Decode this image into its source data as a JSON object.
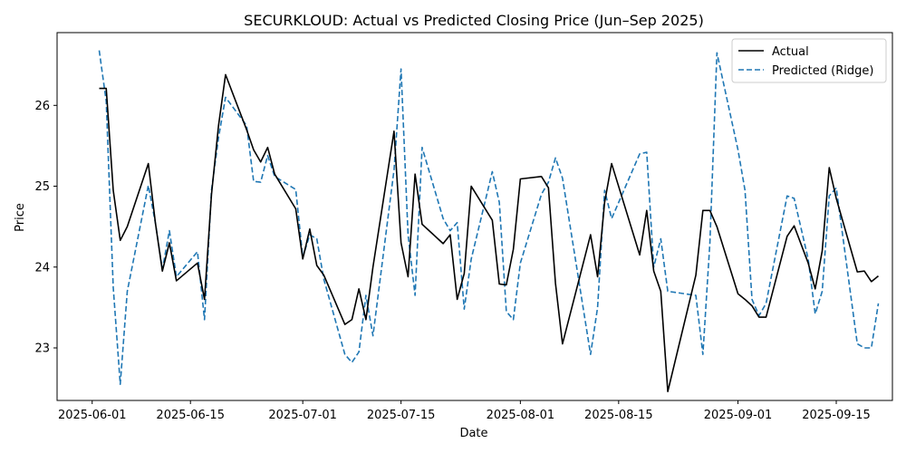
{
  "chart_data": {
    "type": "line",
    "title": "SECURKLOUD: Actual vs Predicted Closing Price (Jun–Sep 2025)",
    "xlabel": "Date",
    "ylabel": "Price",
    "xlim": [
      "2025-05-27",
      "2025-09-23"
    ],
    "ylim": [
      22.35,
      26.9
    ],
    "xticks": [
      "2025-06-01",
      "2025-06-15",
      "2025-07-01",
      "2025-07-15",
      "2025-08-01",
      "2025-08-15",
      "2025-09-01",
      "2025-09-15"
    ],
    "yticks": [
      23,
      24,
      25,
      26
    ],
    "legend_position": "top-right",
    "grid": false,
    "series": [
      {
        "name": "Actual",
        "color": "#000000",
        "style": "solid",
        "points": [
          [
            "2025-06-02",
            26.21
          ],
          [
            "2025-06-03",
            26.21
          ],
          [
            "2025-06-04",
            24.95
          ],
          [
            "2025-06-05",
            24.33
          ],
          [
            "2025-06-06",
            24.5
          ],
          [
            "2025-06-09",
            25.28
          ],
          [
            "2025-06-10",
            24.55
          ],
          [
            "2025-06-11",
            23.95
          ],
          [
            "2025-06-12",
            24.3
          ],
          [
            "2025-06-13",
            23.83
          ],
          [
            "2025-06-16",
            24.05
          ],
          [
            "2025-06-17",
            23.6
          ],
          [
            "2025-06-18",
            24.9
          ],
          [
            "2025-06-19",
            25.75
          ],
          [
            "2025-06-20",
            26.38
          ],
          [
            "2025-06-23",
            25.7
          ],
          [
            "2025-06-24",
            25.45
          ],
          [
            "2025-06-25",
            25.3
          ],
          [
            "2025-06-26",
            25.48
          ],
          [
            "2025-06-27",
            25.15
          ],
          [
            "2025-06-30",
            24.72
          ],
          [
            "2025-07-01",
            24.1
          ],
          [
            "2025-07-02",
            24.47
          ],
          [
            "2025-07-03",
            24.02
          ],
          [
            "2025-07-04",
            23.9
          ],
          [
            "2025-07-07",
            23.29
          ],
          [
            "2025-07-08",
            23.35
          ],
          [
            "2025-07-09",
            23.73
          ],
          [
            "2025-07-10",
            23.35
          ],
          [
            "2025-07-11",
            24.0
          ],
          [
            "2025-07-14",
            25.68
          ],
          [
            "2025-07-15",
            24.3
          ],
          [
            "2025-07-16",
            23.88
          ],
          [
            "2025-07-17",
            25.15
          ],
          [
            "2025-07-18",
            24.53
          ],
          [
            "2025-07-21",
            24.29
          ],
          [
            "2025-07-22",
            24.4
          ],
          [
            "2025-07-23",
            23.6
          ],
          [
            "2025-07-24",
            23.92
          ],
          [
            "2025-07-25",
            25.0
          ],
          [
            "2025-07-28",
            24.58
          ],
          [
            "2025-07-29",
            23.79
          ],
          [
            "2025-07-30",
            23.78
          ],
          [
            "2025-07-31",
            24.22
          ],
          [
            "2025-08-01",
            25.09
          ],
          [
            "2025-08-04",
            25.12
          ],
          [
            "2025-08-05",
            24.98
          ],
          [
            "2025-08-06",
            23.8
          ],
          [
            "2025-08-07",
            23.05
          ],
          [
            "2025-08-11",
            24.4
          ],
          [
            "2025-08-12",
            23.88
          ],
          [
            "2025-08-13",
            24.8
          ],
          [
            "2025-08-14",
            25.28
          ],
          [
            "2025-08-18",
            24.15
          ],
          [
            "2025-08-19",
            24.7
          ],
          [
            "2025-08-20",
            23.95
          ],
          [
            "2025-08-21",
            23.7
          ],
          [
            "2025-08-22",
            22.46
          ],
          [
            "2025-08-26",
            23.9
          ],
          [
            "2025-08-27",
            24.7
          ],
          [
            "2025-08-28",
            24.7
          ],
          [
            "2025-08-29",
            24.5
          ],
          [
            "2025-09-01",
            23.67
          ],
          [
            "2025-09-02",
            23.6
          ],
          [
            "2025-09-03",
            23.52
          ],
          [
            "2025-09-04",
            23.38
          ],
          [
            "2025-09-05",
            23.38
          ],
          [
            "2025-09-08",
            24.38
          ],
          [
            "2025-09-09",
            24.51
          ],
          [
            "2025-09-11",
            24.05
          ],
          [
            "2025-09-12",
            23.73
          ],
          [
            "2025-09-13",
            24.2
          ],
          [
            "2025-09-14",
            25.23
          ],
          [
            "2025-09-15",
            24.85
          ],
          [
            "2025-09-18",
            23.94
          ],
          [
            "2025-09-19",
            23.95
          ],
          [
            "2025-09-20",
            23.82
          ],
          [
            "2025-09-21",
            23.89
          ]
        ]
      },
      {
        "name": "Predicted (Ridge)",
        "color": "#1f77b4",
        "style": "dashed",
        "points": [
          [
            "2025-06-02",
            26.68
          ],
          [
            "2025-06-03",
            26.05
          ],
          [
            "2025-06-04",
            23.75
          ],
          [
            "2025-06-05",
            22.55
          ],
          [
            "2025-06-06",
            23.7
          ],
          [
            "2025-06-09",
            25.01
          ],
          [
            "2025-06-10",
            24.55
          ],
          [
            "2025-06-11",
            23.97
          ],
          [
            "2025-06-12",
            24.45
          ],
          [
            "2025-06-13",
            23.88
          ],
          [
            "2025-06-16",
            24.19
          ],
          [
            "2025-06-17",
            23.35
          ],
          [
            "2025-06-18",
            24.95
          ],
          [
            "2025-06-19",
            25.6
          ],
          [
            "2025-06-20",
            26.1
          ],
          [
            "2025-06-23",
            25.75
          ],
          [
            "2025-06-24",
            25.06
          ],
          [
            "2025-06-25",
            25.05
          ],
          [
            "2025-06-26",
            25.38
          ],
          [
            "2025-06-27",
            25.12
          ],
          [
            "2025-06-30",
            24.96
          ],
          [
            "2025-07-01",
            24.12
          ],
          [
            "2025-07-02",
            24.4
          ],
          [
            "2025-07-03",
            24.35
          ],
          [
            "2025-07-04",
            23.85
          ],
          [
            "2025-07-07",
            22.92
          ],
          [
            "2025-07-08",
            22.82
          ],
          [
            "2025-07-09",
            22.95
          ],
          [
            "2025-07-10",
            23.65
          ],
          [
            "2025-07-11",
            23.15
          ],
          [
            "2025-07-14",
            25.2
          ],
          [
            "2025-07-15",
            26.45
          ],
          [
            "2025-07-16",
            24.4
          ],
          [
            "2025-07-17",
            23.65
          ],
          [
            "2025-07-18",
            25.48
          ],
          [
            "2025-07-21",
            24.6
          ],
          [
            "2025-07-22",
            24.45
          ],
          [
            "2025-07-23",
            24.55
          ],
          [
            "2025-07-24",
            23.48
          ],
          [
            "2025-07-25",
            24.1
          ],
          [
            "2025-07-28",
            25.18
          ],
          [
            "2025-07-29",
            24.8
          ],
          [
            "2025-07-30",
            23.45
          ],
          [
            "2025-07-31",
            23.35
          ],
          [
            "2025-08-01",
            24.05
          ],
          [
            "2025-08-04",
            24.9
          ],
          [
            "2025-08-05",
            25.05
          ],
          [
            "2025-08-06",
            25.35
          ],
          [
            "2025-08-07",
            25.1
          ],
          [
            "2025-08-11",
            22.92
          ],
          [
            "2025-08-12",
            23.5
          ],
          [
            "2025-08-13",
            24.95
          ],
          [
            "2025-08-14",
            24.6
          ],
          [
            "2025-08-18",
            25.4
          ],
          [
            "2025-08-19",
            25.42
          ],
          [
            "2025-08-20",
            24.0
          ],
          [
            "2025-08-21",
            24.35
          ],
          [
            "2025-08-22",
            23.7
          ],
          [
            "2025-08-26",
            23.65
          ],
          [
            "2025-08-27",
            22.92
          ],
          [
            "2025-08-28",
            24.3
          ],
          [
            "2025-08-29",
            26.65
          ],
          [
            "2025-09-01",
            25.45
          ],
          [
            "2025-09-02",
            24.95
          ],
          [
            "2025-09-03",
            23.6
          ],
          [
            "2025-09-04",
            23.4
          ],
          [
            "2025-09-05",
            23.55
          ],
          [
            "2025-09-08",
            24.88
          ],
          [
            "2025-09-09",
            24.85
          ],
          [
            "2025-09-11",
            24.1
          ],
          [
            "2025-09-12",
            23.42
          ],
          [
            "2025-09-13",
            23.7
          ],
          [
            "2025-09-14",
            24.88
          ],
          [
            "2025-09-15",
            24.98
          ],
          [
            "2025-09-18",
            23.05
          ],
          [
            "2025-09-19",
            23.0
          ],
          [
            "2025-09-20",
            23.0
          ],
          [
            "2025-09-21",
            23.55
          ]
        ]
      }
    ]
  }
}
